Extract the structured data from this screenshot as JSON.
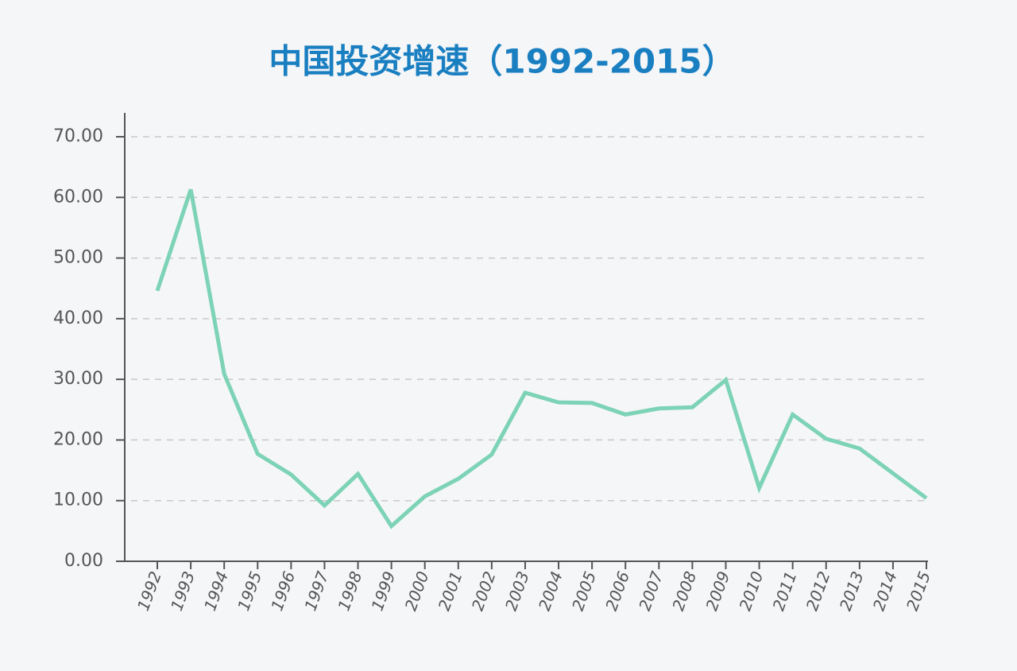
{
  "chart_data": {
    "type": "line",
    "title": "中国投资增速（1992-2015）",
    "categories": [
      "1992",
      "1993",
      "1994",
      "1995",
      "1996",
      "1997",
      "1998",
      "1999",
      "2000",
      "2001",
      "2002",
      "2003",
      "2004",
      "2005",
      "2006",
      "2007",
      "2008",
      "2009",
      "2010",
      "2011",
      "2012",
      "2013",
      "2014",
      "2015"
    ],
    "series": [
      {
        "color": "#7dd3b5",
        "values": [
          44.6,
          61.3,
          30.9,
          17.7,
          14.3,
          9.2,
          14.4,
          5.8,
          10.7,
          13.6,
          17.6,
          27.8,
          26.2,
          26.1,
          24.2,
          25.2,
          25.4,
          29.9,
          12.1,
          24.2,
          20.2,
          18.6,
          14.5,
          10.4
        ]
      }
    ],
    "ylim": [
      0,
      70
    ],
    "yticks": [
      {
        "value": 0,
        "label": "0.00"
      },
      {
        "value": 10,
        "label": "10.00"
      },
      {
        "value": 20,
        "label": "20.00"
      },
      {
        "value": 30,
        "label": "30.00"
      },
      {
        "value": 40,
        "label": "40.00"
      },
      {
        "value": 50,
        "label": "50.00"
      },
      {
        "value": 60,
        "label": "60.00"
      },
      {
        "value": 70,
        "label": "70.00"
      }
    ],
    "grid": true
  }
}
